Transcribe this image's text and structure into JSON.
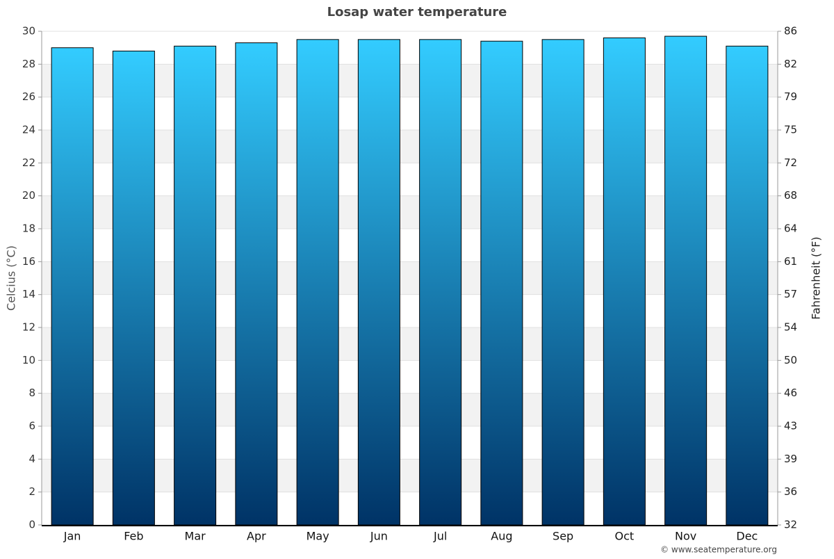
{
  "chart_data": {
    "type": "bar",
    "title": "Losap water temperature",
    "y_label": "Celcius (°C)",
    "y2_label": "Fahrenheit (°F)",
    "credit": "© www.seatemperature.org",
    "categories": [
      "Jan",
      "Feb",
      "Mar",
      "Apr",
      "May",
      "Jun",
      "Jul",
      "Aug",
      "Sep",
      "Oct",
      "Nov",
      "Dec"
    ],
    "values": [
      29.0,
      28.8,
      29.1,
      29.3,
      29.5,
      29.5,
      29.5,
      29.4,
      29.5,
      29.6,
      29.7,
      29.1
    ],
    "color_top": "#33ccff",
    "color_bottom": "#003366",
    "ylim": [
      0,
      30
    ],
    "yticks": [
      0,
      2,
      4,
      6,
      8,
      10,
      12,
      14,
      16,
      18,
      20,
      22,
      24,
      26,
      28,
      30
    ],
    "y2lim": [
      32,
      86
    ],
    "y2ticks": [
      32,
      {
        "value": 35.6,
        "label": "36"
      },
      {
        "value": 39.2,
        "label": "39"
      },
      {
        "value": 42.8,
        "label": "43"
      },
      {
        "value": 46.4,
        "label": "46"
      },
      50,
      {
        "value": 53.6,
        "label": "54"
      },
      {
        "value": 57.2,
        "label": "57"
      },
      {
        "value": 60.8,
        "label": "61"
      },
      {
        "value": 64.4,
        "label": "64"
      },
      68,
      {
        "value": 71.6,
        "label": "72"
      },
      {
        "value": 75.2,
        "label": "75"
      },
      {
        "value": 78.8,
        "label": "79"
      },
      {
        "value": 82.4,
        "label": "82"
      },
      86
    ],
    "grid": true
  }
}
